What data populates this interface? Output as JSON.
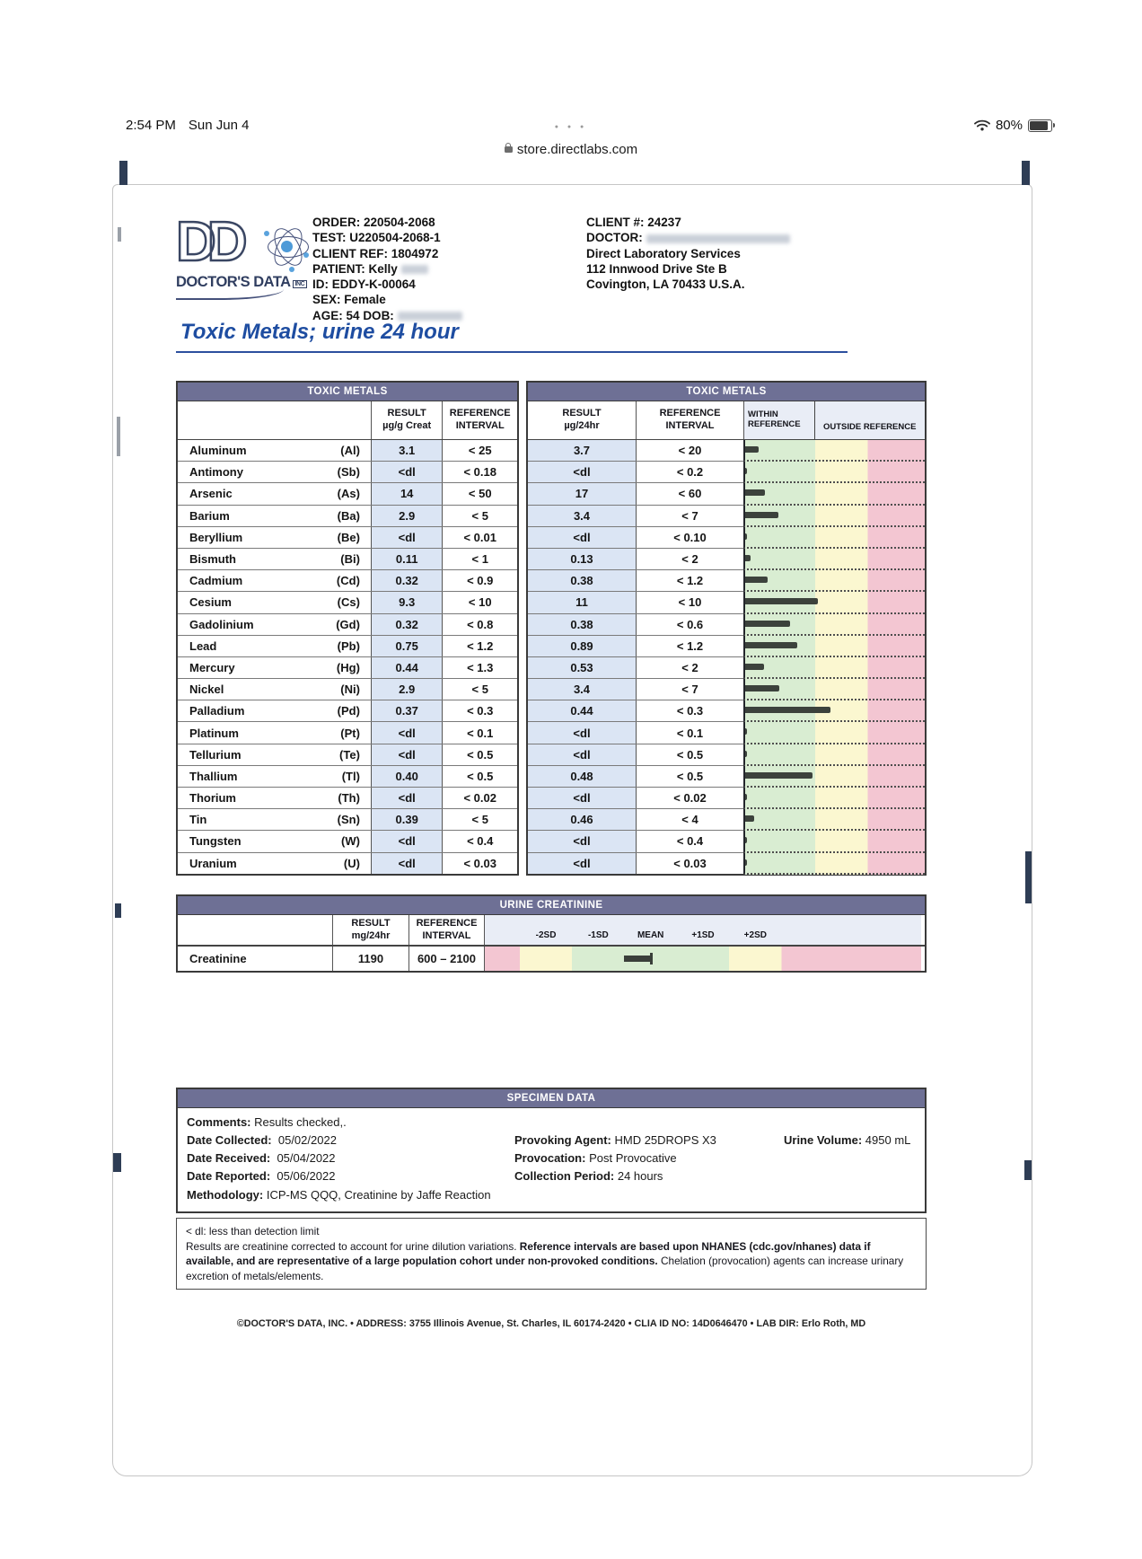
{
  "status_bar": {
    "time": "2:54 PM",
    "date": "Sun Jun 4",
    "tab_dots": "● ● ●",
    "url": "store.directlabs.com",
    "battery_percent": "80%"
  },
  "doc": {
    "logo": {
      "letters": "DD",
      "name": "DOCTOR'S DATA",
      "inc": "INC"
    },
    "order_info": {
      "order_label": "ORDER:",
      "order": "220504-2068",
      "test_label": "TEST:",
      "test": "U220504-2068-1",
      "client_ref_label": "CLIENT REF:",
      "client_ref": "1804972",
      "patient_label": "PATIENT:",
      "patient": "Kelly",
      "id_label": "ID:",
      "id": "EDDY-K-00064",
      "sex_label": "SEX:",
      "sex": "Female",
      "age_label": "AGE:",
      "age": "54",
      "dob_label": "DOB:"
    },
    "client_info": {
      "client_num_label": "CLIENT #:",
      "client_num": "24237",
      "doctor_label": "DOCTOR:",
      "org": "Direct Laboratory Services",
      "address1": "112 Innwood Drive Ste B",
      "address2": "Covington, LA 70433 U.S.A."
    },
    "title": "Toxic Metals; urine 24 hour"
  },
  "metals": {
    "header_left": "TOXIC METALS",
    "header_right": "TOXIC METALS",
    "sub": {
      "result_creat_l1": "RESULT",
      "result_creat_l2": "µg/g Creat",
      "ref_l1": "REFERENCE",
      "ref_l2": "INTERVAL",
      "result_24_l1": "RESULT",
      "result_24_l2": "µg/24hr",
      "ref24_l1": "REFERENCE",
      "ref24_l2": "INTERVAL",
      "within_l1": "WITHIN",
      "within_l2": "REFERENCE",
      "outside": "OUTSIDE REFERENCE"
    },
    "rows": [
      {
        "name": "Aluminum",
        "symbol": "(Al)",
        "result_creat": "3.1",
        "ref_creat": "< 25",
        "result_24": "3.7",
        "ref_24": "< 20",
        "bar": 0.19
      },
      {
        "name": "Antimony",
        "symbol": "(Sb)",
        "result_creat": "<dl",
        "ref_creat": "< 0.18",
        "result_24": "<dl",
        "ref_24": "< 0.2",
        "bar": 0.03
      },
      {
        "name": "Arsenic",
        "symbol": "(As)",
        "result_creat": "14",
        "ref_creat": "< 50",
        "result_24": "17",
        "ref_24": "< 60",
        "bar": 0.28
      },
      {
        "name": "Barium",
        "symbol": "(Ba)",
        "result_creat": "2.9",
        "ref_creat": "< 5",
        "result_24": "3.4",
        "ref_24": "< 7",
        "bar": 0.47
      },
      {
        "name": "Beryllium",
        "symbol": "(Be)",
        "result_creat": "<dl",
        "ref_creat": "< 0.01",
        "result_24": "<dl",
        "ref_24": "< 0.10",
        "bar": 0.03
      },
      {
        "name": "Bismuth",
        "symbol": "(Bi)",
        "result_creat": "0.11",
        "ref_creat": "< 1",
        "result_24": "0.13",
        "ref_24": "< 2",
        "bar": 0.07
      },
      {
        "name": "Cadmium",
        "symbol": "(Cd)",
        "result_creat": "0.32",
        "ref_creat": "< 0.9",
        "result_24": "0.38",
        "ref_24": "< 1.2",
        "bar": 0.31
      },
      {
        "name": "Cesium",
        "symbol": "(Cs)",
        "result_creat": "9.3",
        "ref_creat": "< 10",
        "result_24": "11",
        "ref_24": "< 10",
        "bar": 1.02
      },
      {
        "name": "Gadolinium",
        "symbol": "(Gd)",
        "result_creat": "0.32",
        "ref_creat": "< 0.8",
        "result_24": "0.38",
        "ref_24": "< 0.6",
        "bar": 0.63
      },
      {
        "name": "Lead",
        "symbol": "(Pb)",
        "result_creat": "0.75",
        "ref_creat": "< 1.2",
        "result_24": "0.89",
        "ref_24": "< 1.2",
        "bar": 0.73
      },
      {
        "name": "Mercury",
        "symbol": "(Hg)",
        "result_creat": "0.44",
        "ref_creat": "< 1.3",
        "result_24": "0.53",
        "ref_24": "< 2",
        "bar": 0.27
      },
      {
        "name": "Nickel",
        "symbol": "(Ni)",
        "result_creat": "2.9",
        "ref_creat": "< 5",
        "result_24": "3.4",
        "ref_24": "< 7",
        "bar": 0.48
      },
      {
        "name": "Palladium",
        "symbol": "(Pd)",
        "result_creat": "0.37",
        "ref_creat": "< 0.3",
        "result_24": "0.44",
        "ref_24": "< 0.3",
        "bar": 1.2
      },
      {
        "name": "Platinum",
        "symbol": "(Pt)",
        "result_creat": "<dl",
        "ref_creat": "< 0.1",
        "result_24": "<dl",
        "ref_24": "< 0.1",
        "bar": 0.03
      },
      {
        "name": "Tellurium",
        "symbol": "(Te)",
        "result_creat": "<dl",
        "ref_creat": "< 0.5",
        "result_24": "<dl",
        "ref_24": "< 0.5",
        "bar": 0.03
      },
      {
        "name": "Thallium",
        "symbol": "(Tl)",
        "result_creat": "0.40",
        "ref_creat": "< 0.5",
        "result_24": "0.48",
        "ref_24": "< 0.5",
        "bar": 0.95
      },
      {
        "name": "Thorium",
        "symbol": "(Th)",
        "result_creat": "<dl",
        "ref_creat": "< 0.02",
        "result_24": "<dl",
        "ref_24": "< 0.02",
        "bar": 0.03
      },
      {
        "name": "Tin",
        "symbol": "(Sn)",
        "result_creat": "0.39",
        "ref_creat": "< 5",
        "result_24": "0.46",
        "ref_24": "< 4",
        "bar": 0.12
      },
      {
        "name": "Tungsten",
        "symbol": "(W)",
        "result_creat": "<dl",
        "ref_creat": "< 0.4",
        "result_24": "<dl",
        "ref_24": "< 0.4",
        "bar": 0.03
      },
      {
        "name": "Uranium",
        "symbol": "(U)",
        "result_creat": "<dl",
        "ref_creat": "< 0.03",
        "result_24": "<dl",
        "ref_24": "< 0.03",
        "bar": 0.03
      }
    ]
  },
  "creatinine": {
    "header": "URINE CREATININE",
    "sub": {
      "result_l1": "RESULT",
      "result_l2": "mg/24hr",
      "ref_l1": "REFERENCE",
      "ref_l2": "INTERVAL",
      "sd_labels": [
        "-2SD",
        "-1SD",
        "MEAN",
        "+1SD",
        "+2SD"
      ]
    },
    "row": {
      "name": "Creatinine",
      "result": "1190",
      "ref": "600 – 2100",
      "marker_pos": 0.35
    }
  },
  "specimen": {
    "header": "SPECIMEN DATA",
    "comments_label": "Comments:",
    "comments": "Results checked,.",
    "rows": [
      {
        "l1": "Date Collected:",
        "v1": "05/02/2022",
        "l2": "Provoking Agent:",
        "v2": "HMD 25DROPS X3",
        "l3": "Urine Volume:",
        "v3": "4950 mL"
      },
      {
        "l1": "Date Received:",
        "v1": "05/04/2022",
        "l2": "Provocation:",
        "v2": "Post Provocative",
        "l3": "",
        "v3": ""
      },
      {
        "l1": "Date Reported:",
        "v1": "05/06/2022",
        "l2": "Collection Period:",
        "v2": "24 hours",
        "l3": "",
        "v3": ""
      }
    ],
    "methodology_label": "Methodology:",
    "methodology": "ICP-MS QQQ, Creatinine by Jaffe Reaction"
  },
  "footnote": {
    "line1": "< dl: less than detection limit",
    "seg1": "Results are creatinine corrected to account for urine dilution variations. ",
    "seg2": "Reference intervals are based upon NHANES (cdc.gov/nhanes) data if available, and are representative of a large population cohort under non-provoked conditions.",
    "seg3": " Chelation (provocation) agents can increase urinary excretion of metals/elements."
  },
  "footer": "©DOCTOR'S DATA, INC. • ADDRESS: 3755 Illinois Avenue, St. Charles, IL 60174-2420 • CLIA ID NO: 14D0646470 • LAB DIR: Erlo Roth, MD",
  "colors": {
    "header_bar": "#6e7095",
    "within_green": "#d9edd2",
    "caution_yellow": "#fbf7d0",
    "outside_pink": "#f3c6d2",
    "result_col_blue": "#dbe5f4",
    "bar_dark": "#3c423c",
    "title_blue": "#1e4da1"
  }
}
